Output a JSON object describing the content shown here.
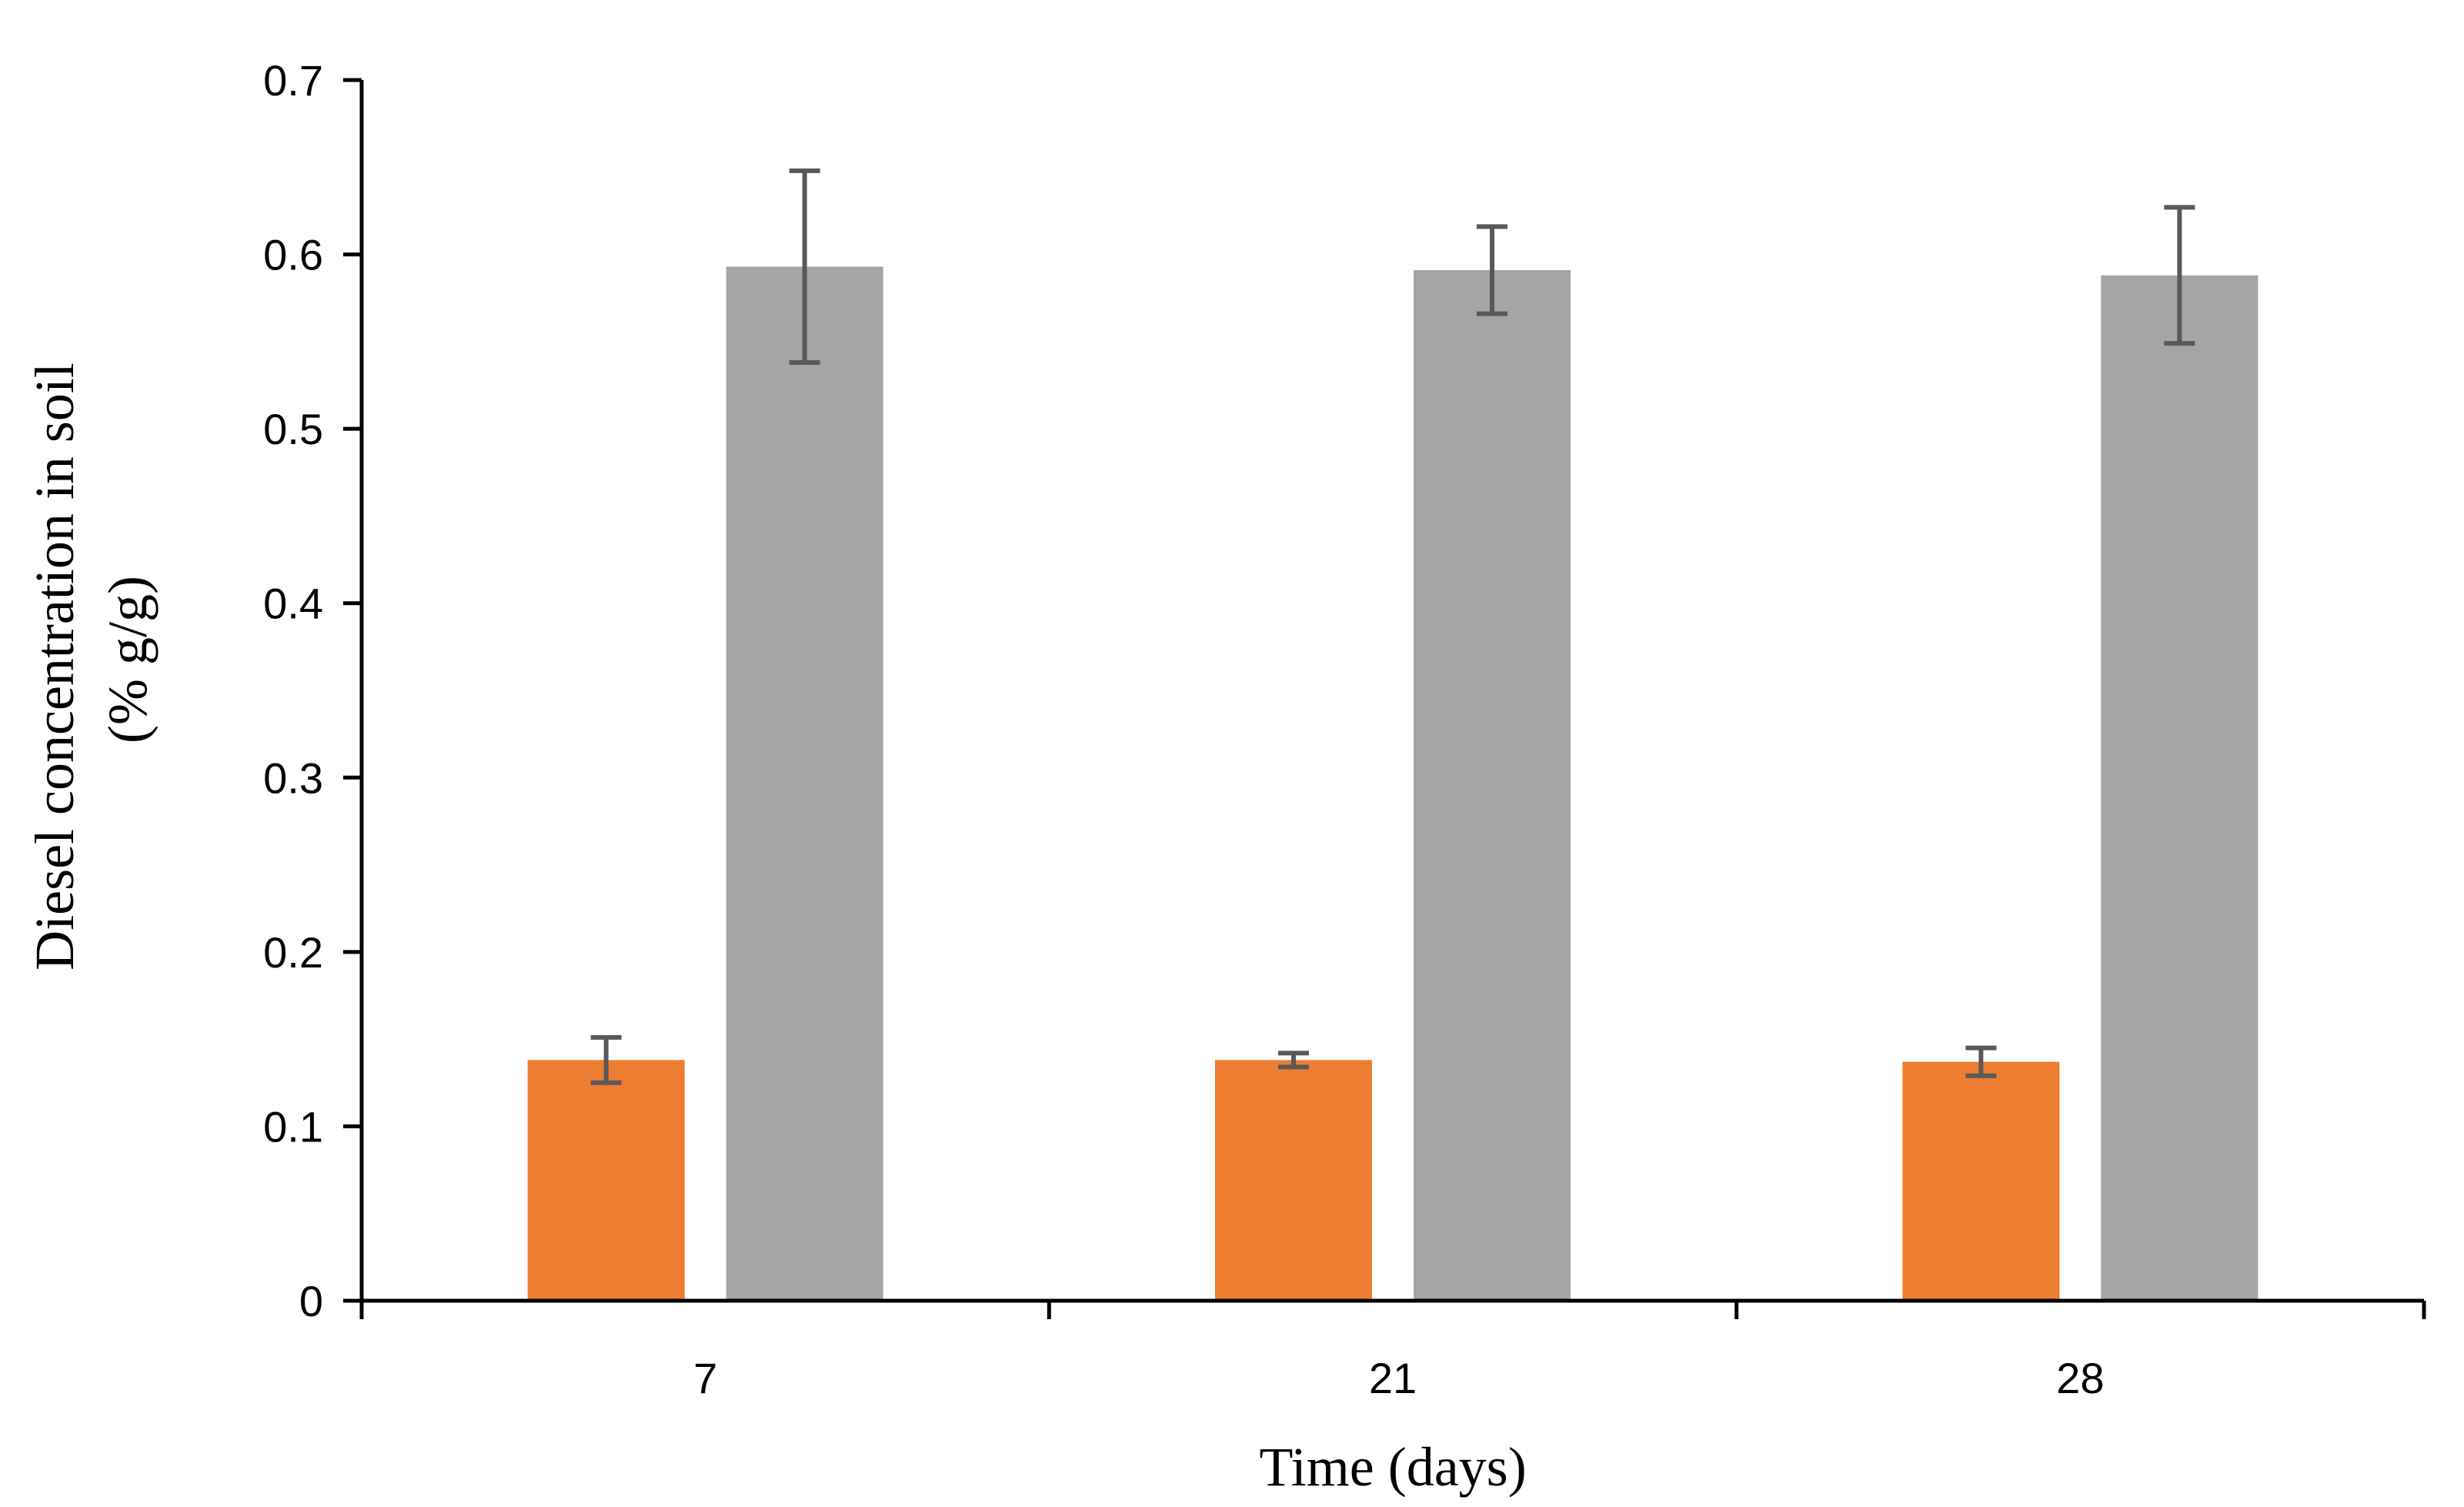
{
  "chart_data": {
    "type": "bar",
    "title": "",
    "xlabel": "Time (days)",
    "ylabel": [
      "Diesel concentration in soil",
      "(% g/g)"
    ],
    "categories": [
      "7",
      "21",
      "28"
    ],
    "ylim": [
      0,
      0.7
    ],
    "yticks": [
      "0",
      "0.1",
      "0.2",
      "0.3",
      "0.4",
      "0.5",
      "0.6",
      "0.7"
    ],
    "grid": false,
    "legend": "none",
    "series": [
      {
        "color": "#ED7D31",
        "values": [
          0.138,
          0.138,
          0.137
        ],
        "errors": [
          0.013,
          0.004,
          0.008
        ]
      },
      {
        "color": "#A5A5A5",
        "values": [
          0.593,
          0.591,
          0.588
        ],
        "errors": [
          0.055,
          0.025,
          0.039
        ]
      }
    ],
    "error_bar_color": "#595959",
    "axis_color": "#000000"
  }
}
